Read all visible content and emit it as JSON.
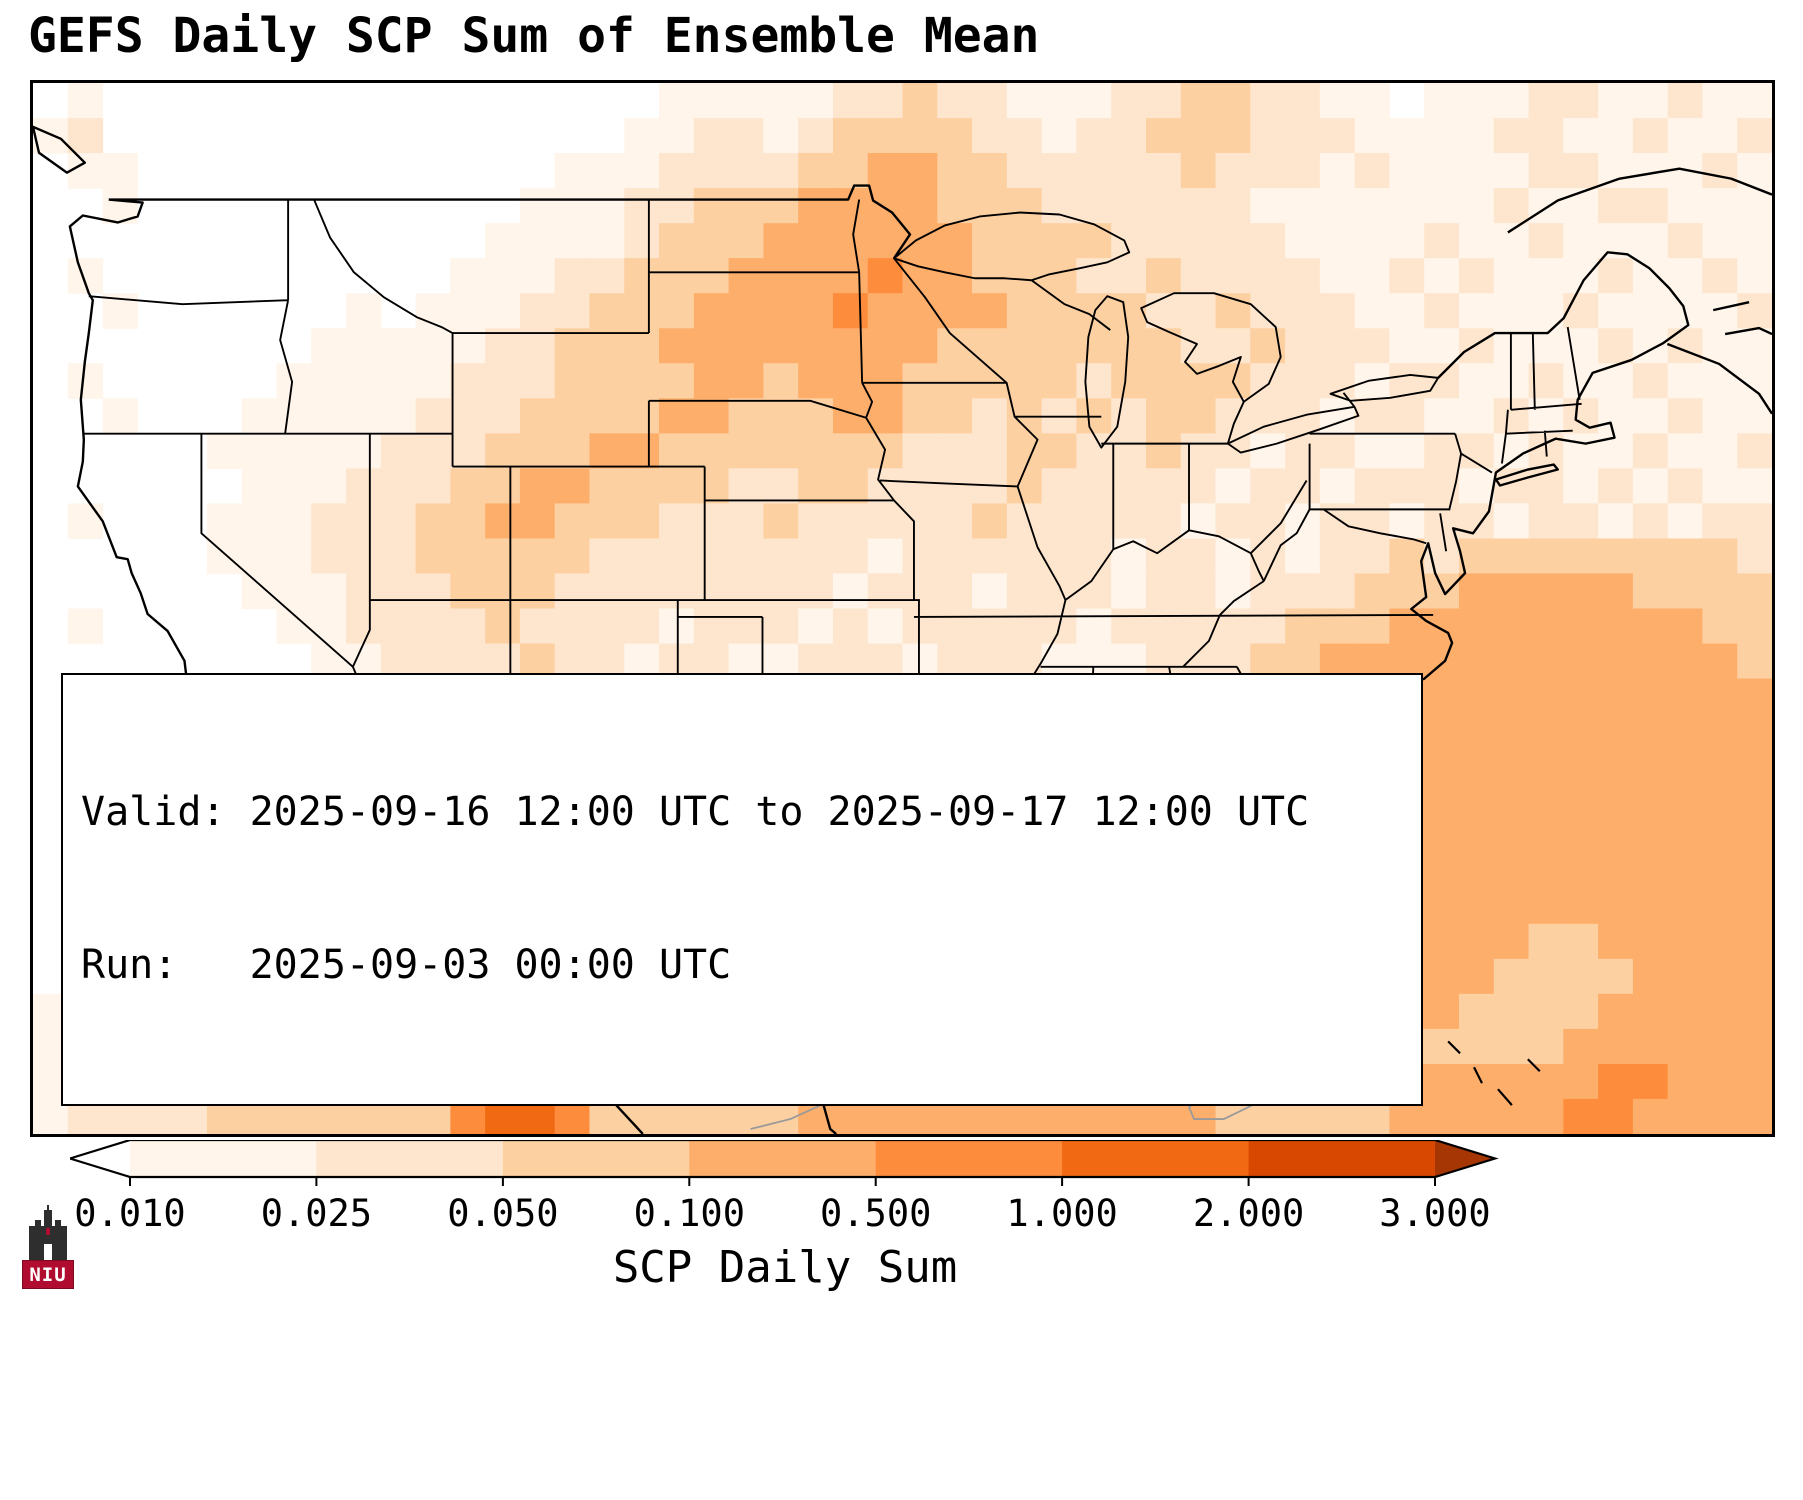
{
  "title": "GEFS Daily SCP Sum of Ensemble Mean",
  "info_box": {
    "line1": "Valid: 2025-09-16 12:00 UTC to 2025-09-17 12:00 UTC",
    "line2": "Run:   2025-09-03 00:00 UTC"
  },
  "colorbar": {
    "label": "SCP Daily Sum",
    "ticks": [
      "0.010",
      "0.025",
      "0.050",
      "0.100",
      "0.500",
      "1.000",
      "2.000",
      "3.000"
    ],
    "segment_colors": [
      "#fff5eb",
      "#fee6ce",
      "#fdd0a2",
      "#fdae6b",
      "#fd8d3c",
      "#f16913",
      "#d94801"
    ],
    "under_color": "#ffffff",
    "over_color": "#a63603"
  },
  "logo": {
    "text": "NIU",
    "bar_color": "#b00c2f"
  },
  "chart_data": {
    "type": "heatmap",
    "title": "GEFS Daily SCP Sum of Ensemble Mean",
    "units_label": "SCP Daily Sum",
    "valid_period": "2025-09-16 12:00 UTC to 2025-09-17 12:00 UTC",
    "run_time": "2025-09-03 00:00 UTC",
    "level_boundaries": [
      0.01,
      0.025,
      0.05,
      0.1,
      0.5,
      1.0,
      2.0,
      3.0
    ],
    "palette": [
      "#ffffff",
      "#fff5eb",
      "#fee6ce",
      "#fdd0a2",
      "#fdae6b",
      "#fd8d3c",
      "#f16913",
      "#d94801"
    ],
    "value_encoding": "each grid character 0-7 is a color-bin index into palette; bins correspond to SCP daily-sum ranges bounded by level_boundaries (0 = below 0.010)",
    "cols": 50,
    "rows": 30,
    "grid": [
      "01000000000000000011111223221112233221101112211211",
      "12000000000000000112212333322122333222111122112112",
      "01100000000000011122223344332222232221211112211121",
      "00100000000000111223334444333222222111111121122111",
      "00000000000001111233344444433332222211112112111211",
      "01000000000011122333444454433322322221121211121121",
      "00100000010111223334444544443333223222112111211112",
      "00000000111112233344444444333333322322211211121211",
      "01000001111122233334434443333323333222122112112111",
      "00100011111222333344333443323232332221221121211211",
      "00000111112223334433333332223322322122112212112112",
      "00000011122233443333223322223222221221222122121211",
      "01000111222334433322232222232222212212212212212122",
      "00000111222333332222222212222221221212232333333332",
      "00000011122233322222222122212221221222333444443333",
      "01000001122223222212221212222212222233344444444433",
      "00000000112222322122112221222111222334444444444443",
      "00000000011223222221212212111111123344444444444444",
      "00000000011222232222221121111011112344444444444444",
      "00000000111222222222211110111111113344444444444444",
      "00000001111122222222211101111111233444444444444444",
      "01000011112222222222221111112222334444444444444444",
      "00100111222222322222222122333333344444444444444444",
      "00011112222223222222222233444444444444444444444444",
      "00111122222233222222223344444444444444444443344444",
      "01111222222333322222333444444444444444444433334444",
      "11112222233333332223334444444444444444444333344444",
      "11122222333333333333344444444444444333333333444444",
      "11222233333467753333444444444444443333344444455444",
      "12222333333356653333334444444444443333344444554444"
    ]
  }
}
